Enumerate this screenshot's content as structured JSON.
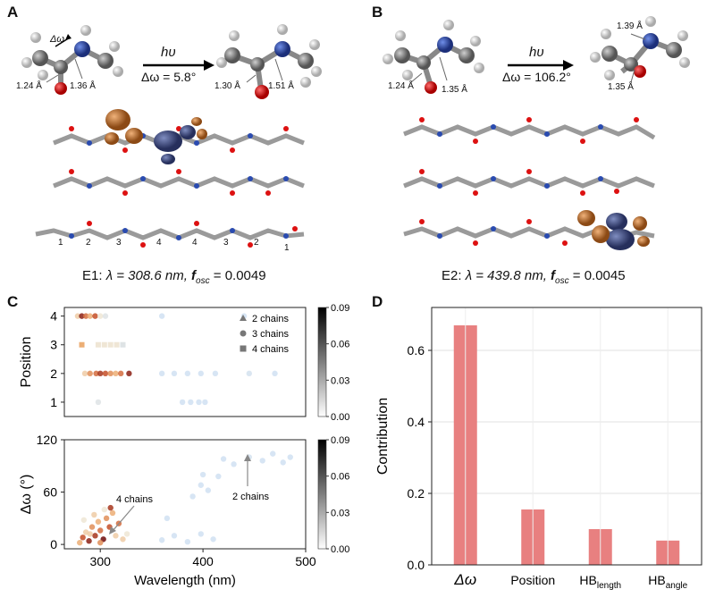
{
  "panels": {
    "A": "A",
    "B": "B",
    "C": "C",
    "D": "D"
  },
  "molecule_A": {
    "delta_omega_symbol": "Δω",
    "left_bond_1": "1.24 Å",
    "left_bond_2": "1.36 Å",
    "arrow_top": "hυ",
    "arrow_bottom": "Δω = 5.8°",
    "right_bond_1": "1.30 Å",
    "right_bond_2": "1.51 Å"
  },
  "molecule_B": {
    "left_bond_1": "1.24 Å",
    "left_bond_2": "1.35 Å",
    "arrow_top": "hυ",
    "arrow_bottom": "Δω = 106.2°",
    "right_bond_1": "1.39 Å",
    "right_bond_2": "1.35 Å"
  },
  "chain_position_labels": [
    "1",
    "2",
    "3",
    "4",
    "4",
    "3",
    "2",
    "1"
  ],
  "captions": {
    "E1_prefix": "E1: ",
    "E1_lambda": "λ = 308.6 nm, ",
    "E1_fosc": "f",
    "E1_sub": "osc",
    "E1_val": " = 0.0049",
    "E2_prefix": "E2: ",
    "E2_lambda": "λ = 439.8 nm, ",
    "E2_fosc": "f",
    "E2_sub": "osc",
    "E2_val": " = 0.0045"
  },
  "colors": {
    "orange": "#d98a4a",
    "blue": "#3a4d8f",
    "grey": "#8c8c8c",
    "bar": "#e88080",
    "dark_red": "#7a0f0f"
  },
  "chart_data": [
    {
      "type": "scatter",
      "ylabel": "Position",
      "xlim": [
        265,
        500
      ],
      "ylim": [
        0.5,
        4.3
      ],
      "yticks": [
        1,
        2,
        3,
        4
      ],
      "colorbar": {
        "ticks": [
          "0.00",
          "0.03",
          "0.06",
          "0.09"
        ],
        "range": [
          0,
          0.09
        ]
      },
      "legend": [
        "2 chains",
        "3 chains",
        "4 chains"
      ],
      "points": [
        {
          "x": 278,
          "y": 4,
          "c": 0.02
        },
        {
          "x": 282,
          "y": 4,
          "c": 0.08
        },
        {
          "x": 286,
          "y": 4,
          "c": 0.05
        },
        {
          "x": 290,
          "y": 4,
          "c": 0.03
        },
        {
          "x": 295,
          "y": 4,
          "c": 0.06
        },
        {
          "x": 300,
          "y": 4,
          "c": 0.01
        },
        {
          "x": 305,
          "y": 4,
          "c": 0.005
        },
        {
          "x": 360,
          "y": 4,
          "c": 0.001
        },
        {
          "x": 440,
          "y": 4,
          "c": 0.001
        },
        {
          "x": 282,
          "y": 3,
          "c": 0.03
        },
        {
          "x": 298,
          "y": 3,
          "c": 0.01
        },
        {
          "x": 304,
          "y": 3,
          "c": 0.01
        },
        {
          "x": 310,
          "y": 3,
          "c": 0.01
        },
        {
          "x": 316,
          "y": 3,
          "c": 0.01
        },
        {
          "x": 322,
          "y": 3,
          "c": 0.005
        },
        {
          "x": 285,
          "y": 2,
          "c": 0.02
        },
        {
          "x": 290,
          "y": 2,
          "c": 0.04
        },
        {
          "x": 296,
          "y": 2,
          "c": 0.05
        },
        {
          "x": 300,
          "y": 2,
          "c": 0.07
        },
        {
          "x": 305,
          "y": 2,
          "c": 0.06
        },
        {
          "x": 310,
          "y": 2,
          "c": 0.04
        },
        {
          "x": 315,
          "y": 2,
          "c": 0.03
        },
        {
          "x": 320,
          "y": 2,
          "c": 0.05
        },
        {
          "x": 328,
          "y": 2,
          "c": 0.08
        },
        {
          "x": 360,
          "y": 2,
          "c": 0.001
        },
        {
          "x": 372,
          "y": 2,
          "c": 0.001
        },
        {
          "x": 385,
          "y": 2,
          "c": 0.001
        },
        {
          "x": 398,
          "y": 2,
          "c": 0.001
        },
        {
          "x": 412,
          "y": 2,
          "c": 0.001
        },
        {
          "x": 445,
          "y": 2,
          "c": 0.002
        },
        {
          "x": 470,
          "y": 2,
          "c": 0.001
        },
        {
          "x": 298,
          "y": 1,
          "c": 0.005
        },
        {
          "x": 380,
          "y": 1,
          "c": 0.001
        },
        {
          "x": 388,
          "y": 1,
          "c": 0.001
        },
        {
          "x": 396,
          "y": 1,
          "c": 0.001
        },
        {
          "x": 402,
          "y": 1,
          "c": 0.001
        }
      ]
    },
    {
      "type": "scatter",
      "xlabel": "Wavelength (nm)",
      "ylabel": "Δω (°)",
      "xlim": [
        265,
        500
      ],
      "ylim": [
        -5,
        120
      ],
      "xticks": [
        300,
        400,
        500
      ],
      "yticks": [
        0,
        60,
        120
      ],
      "colorbar": {
        "ticks": [
          "0.00",
          "0.03",
          "0.06",
          "0.09"
        ],
        "range": [
          0,
          0.09
        ]
      },
      "annotations": [
        {
          "text": "4 chains"
        },
        {
          "text": "2 chains"
        }
      ],
      "points": [
        {
          "x": 280,
          "y": 2,
          "c": 0.03
        },
        {
          "x": 283,
          "y": 8,
          "c": 0.06
        },
        {
          "x": 286,
          "y": 14,
          "c": 0.02
        },
        {
          "x": 289,
          "y": 4,
          "c": 0.08
        },
        {
          "x": 292,
          "y": 20,
          "c": 0.04
        },
        {
          "x": 295,
          "y": 10,
          "c": 0.07
        },
        {
          "x": 298,
          "y": 26,
          "c": 0.03
        },
        {
          "x": 300,
          "y": 16,
          "c": 0.05
        },
        {
          "x": 303,
          "y": 6,
          "c": 0.09
        },
        {
          "x": 306,
          "y": 30,
          "c": 0.04
        },
        {
          "x": 309,
          "y": 20,
          "c": 0.06
        },
        {
          "x": 312,
          "y": 36,
          "c": 0.03
        },
        {
          "x": 315,
          "y": 10,
          "c": 0.02
        },
        {
          "x": 318,
          "y": 24,
          "c": 0.05
        },
        {
          "x": 284,
          "y": 28,
          "c": 0.01
        },
        {
          "x": 294,
          "y": 34,
          "c": 0.02
        },
        {
          "x": 304,
          "y": 40,
          "c": 0.01
        },
        {
          "x": 310,
          "y": 42,
          "c": 0.07
        },
        {
          "x": 322,
          "y": 6,
          "c": 0.02
        },
        {
          "x": 326,
          "y": 12,
          "c": 0.01
        },
        {
          "x": 300,
          "y": 2,
          "c": 0.04
        },
        {
          "x": 290,
          "y": 12,
          "c": 0.02
        },
        {
          "x": 360,
          "y": 5,
          "c": 0.001
        },
        {
          "x": 372,
          "y": 10,
          "c": 0.001
        },
        {
          "x": 385,
          "y": 3,
          "c": 0.001
        },
        {
          "x": 398,
          "y": 12,
          "c": 0.001
        },
        {
          "x": 410,
          "y": 6,
          "c": 0.001
        },
        {
          "x": 365,
          "y": 30,
          "c": 0.001
        },
        {
          "x": 390,
          "y": 55,
          "c": 0.001
        },
        {
          "x": 398,
          "y": 68,
          "c": 0.001
        },
        {
          "x": 405,
          "y": 62,
          "c": 0.001
        },
        {
          "x": 415,
          "y": 78,
          "c": 0.001
        },
        {
          "x": 400,
          "y": 80,
          "c": 0.001
        },
        {
          "x": 430,
          "y": 92,
          "c": 0.001
        },
        {
          "x": 445,
          "y": 100,
          "c": 0.002
        },
        {
          "x": 458,
          "y": 96,
          "c": 0.001
        },
        {
          "x": 468,
          "y": 104,
          "c": 0.001
        },
        {
          "x": 478,
          "y": 94,
          "c": 0.001
        },
        {
          "x": 485,
          "y": 100,
          "c": 0.001
        },
        {
          "x": 420,
          "y": 98,
          "c": 0.001
        }
      ]
    },
    {
      "type": "bar",
      "ylabel": "Contribution",
      "categories": [
        "Δω",
        "Position",
        "HB",
        "HB"
      ],
      "category_subs": [
        "",
        "",
        "length",
        "angle"
      ],
      "values": [
        0.67,
        0.155,
        0.1,
        0.068
      ],
      "ylim": [
        0,
        0.72
      ],
      "yticks": [
        0.0,
        0.2,
        0.4,
        0.6
      ],
      "ytick_labels": [
        "0.0",
        "0.2",
        "0.4",
        "0.6"
      ],
      "grid": true
    }
  ]
}
